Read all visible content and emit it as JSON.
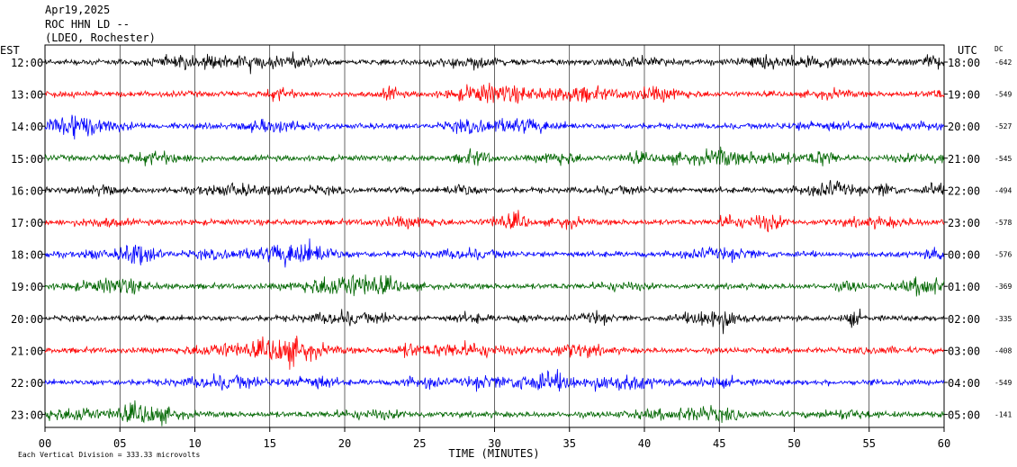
{
  "header": {
    "date": "Apr19,2025",
    "station": "ROC HHN LD --",
    "network": "(LDEO, Rochester)"
  },
  "chart_data": {
    "type": "line",
    "title": "",
    "xlabel": "TIME (MINUTES)",
    "xlim": [
      0,
      60
    ],
    "x_ticks": [
      "00",
      "05",
      "10",
      "15",
      "20",
      "25",
      "30",
      "35",
      "40",
      "45",
      "50",
      "55",
      "60"
    ],
    "left_axis_label": "EST",
    "right_axis_label": "UTC",
    "dc_label": "DC",
    "scale_note": "Each Vertical Division = 333.33 microvolts",
    "colors": [
      "#000000",
      "#ff0000",
      "#0000ff",
      "#006600"
    ],
    "traces": [
      {
        "est": "12:00",
        "utc": "18:00",
        "dc": "-642",
        "color": "#000000"
      },
      {
        "est": "13:00",
        "utc": "19:00",
        "dc": "-549",
        "color": "#ff0000"
      },
      {
        "est": "14:00",
        "utc": "20:00",
        "dc": "-527",
        "color": "#0000ff"
      },
      {
        "est": "15:00",
        "utc": "21:00",
        "dc": "-545",
        "color": "#006600"
      },
      {
        "est": "16:00",
        "utc": "22:00",
        "dc": "-494",
        "color": "#000000"
      },
      {
        "est": "17:00",
        "utc": "23:00",
        "dc": "-578",
        "color": "#ff0000"
      },
      {
        "est": "18:00",
        "utc": "00:00",
        "dc": "-576",
        "color": "#0000ff"
      },
      {
        "est": "19:00",
        "utc": "01:00",
        "dc": "-369",
        "color": "#006600"
      },
      {
        "est": "20:00",
        "utc": "02:00",
        "dc": "-335",
        "color": "#000000"
      },
      {
        "est": "21:00",
        "utc": "03:00",
        "dc": "-408",
        "color": "#ff0000"
      },
      {
        "est": "22:00",
        "utc": "04:00",
        "dc": "-549",
        "color": "#0000ff"
      },
      {
        "est": "23:00",
        "utc": "05:00",
        "dc": "-141",
        "color": "#006600"
      }
    ]
  }
}
